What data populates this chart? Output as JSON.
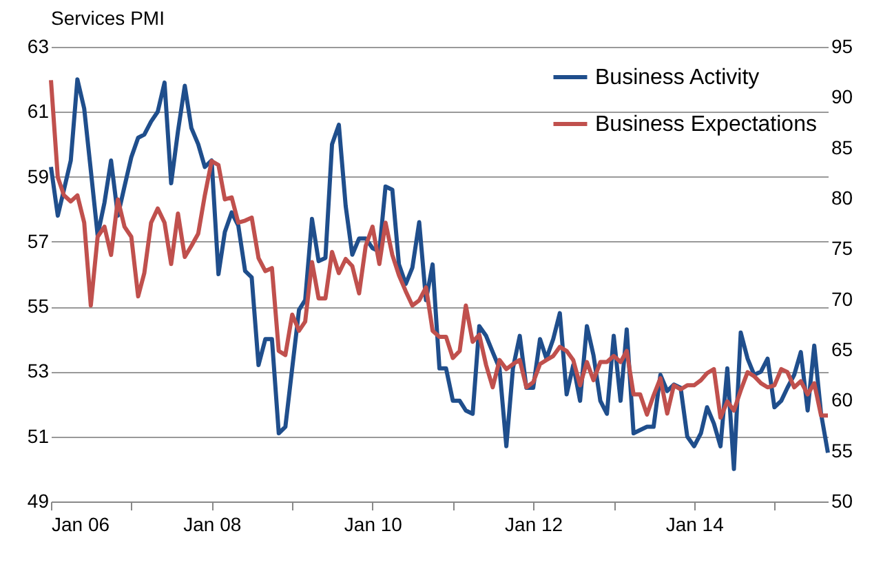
{
  "chart_data": {
    "type": "line",
    "title": "Services PMI",
    "x": [
      "2006-01",
      "2006-02",
      "2006-03",
      "2006-04",
      "2006-05",
      "2006-06",
      "2006-07",
      "2006-08",
      "2006-09",
      "2006-10",
      "2006-11",
      "2006-12",
      "2007-01",
      "2007-02",
      "2007-03",
      "2007-04",
      "2007-05",
      "2007-06",
      "2007-07",
      "2007-08",
      "2007-09",
      "2007-10",
      "2007-11",
      "2007-12",
      "2008-01",
      "2008-02",
      "2008-03",
      "2008-04",
      "2008-05",
      "2008-06",
      "2008-07",
      "2008-08",
      "2008-09",
      "2008-10",
      "2008-11",
      "2008-12",
      "2009-01",
      "2009-02",
      "2009-03",
      "2009-04",
      "2009-05",
      "2009-06",
      "2009-07",
      "2009-08",
      "2009-09",
      "2009-10",
      "2009-11",
      "2009-12",
      "2010-01",
      "2010-02",
      "2010-03",
      "2010-04",
      "2010-05",
      "2010-06",
      "2010-07",
      "2010-08",
      "2010-09",
      "2010-10",
      "2010-11",
      "2010-12",
      "2011-01",
      "2011-02",
      "2011-03",
      "2011-04",
      "2011-05",
      "2011-06",
      "2011-07",
      "2011-08",
      "2011-09",
      "2011-10",
      "2011-11",
      "2011-12",
      "2012-01",
      "2012-02",
      "2012-03",
      "2012-04",
      "2012-05",
      "2012-06",
      "2012-07",
      "2012-08",
      "2012-09",
      "2012-10",
      "2012-11",
      "2012-12",
      "2013-01",
      "2013-02",
      "2013-03",
      "2013-04",
      "2013-05",
      "2013-06",
      "2013-07",
      "2013-08",
      "2013-09",
      "2013-10",
      "2013-11",
      "2013-12",
      "2014-01",
      "2014-02",
      "2014-03",
      "2014-04",
      "2014-05",
      "2014-06",
      "2014-07",
      "2014-08",
      "2014-09",
      "2014-10",
      "2014-11",
      "2014-12",
      "2015-01",
      "2015-02",
      "2015-03",
      "2015-04",
      "2015-05",
      "2015-06",
      "2015-07",
      "2015-08",
      "2015-09"
    ],
    "series": [
      {
        "name": "Business Activity",
        "color": "#1f4e8c",
        "axis": "y",
        "values": [
          59.3,
          57.8,
          58.6,
          59.5,
          62.0,
          61.1,
          59.2,
          57.2,
          58.2,
          59.5,
          57.8,
          58.7,
          59.6,
          60.2,
          60.3,
          60.7,
          61.0,
          61.9,
          58.8,
          60.4,
          61.8,
          60.5,
          60.0,
          59.3,
          59.5,
          56.0,
          57.3,
          57.9,
          57.5,
          56.1,
          55.9,
          53.2,
          54.0,
          54.0,
          51.1,
          51.3,
          53.1,
          54.9,
          55.2,
          57.7,
          56.4,
          56.5,
          60.0,
          60.6,
          58.1,
          56.6,
          57.1,
          57.1,
          56.8,
          56.7,
          58.7,
          58.6,
          56.3,
          55.7,
          56.2,
          57.6,
          55.2,
          56.3,
          53.1,
          53.1,
          52.1,
          52.1,
          51.8,
          51.7,
          54.4,
          54.1,
          53.6,
          53.1,
          50.7,
          53.1,
          54.1,
          52.5,
          52.5,
          54.0,
          53.4,
          54.0,
          54.8,
          52.3,
          53.2,
          52.1,
          54.4,
          53.5,
          52.1,
          51.7,
          54.1,
          52.1,
          54.3,
          51.1,
          51.2,
          51.3,
          51.3,
          52.9,
          52.4,
          52.6,
          52.5,
          51.0,
          50.7,
          51.1,
          51.9,
          51.4,
          50.7,
          53.1,
          50.0,
          54.2,
          53.4,
          52.9,
          53.0,
          53.4,
          51.9,
          52.1,
          52.5,
          52.9,
          53.6,
          51.8,
          53.8,
          51.7,
          50.5
        ]
      },
      {
        "name": "Business Expectations",
        "color": "#c0504d",
        "axis": "y2",
        "values": [
          91.7,
          82.1,
          80.3,
          79.7,
          80.3,
          77.6,
          69.4,
          76.2,
          77.2,
          74.4,
          79.9,
          77.2,
          76.2,
          70.3,
          72.6,
          77.6,
          79.0,
          77.6,
          73.5,
          78.5,
          74.2,
          75.3,
          76.5,
          80.3,
          83.7,
          83.3,
          79.9,
          80.1,
          77.6,
          77.8,
          78.1,
          74.1,
          72.8,
          73.1,
          64.9,
          64.5,
          68.5,
          66.9,
          67.8,
          73.7,
          70.1,
          70.1,
          74.7,
          72.6,
          74.0,
          73.3,
          70.6,
          75.3,
          77.2,
          73.5,
          77.6,
          74.4,
          72.4,
          70.8,
          69.4,
          69.9,
          71.2,
          66.9,
          66.3,
          66.3,
          64.2,
          64.9,
          69.4,
          65.8,
          66.5,
          63.5,
          61.3,
          64.0,
          63.1,
          63.6,
          64.0,
          61.3,
          61.8,
          63.6,
          64.0,
          64.4,
          65.3,
          64.9,
          64.0,
          61.5,
          63.8,
          62.0,
          63.8,
          63.8,
          64.4,
          63.8,
          64.9,
          60.6,
          60.6,
          58.6,
          60.5,
          62.2,
          58.7,
          61.5,
          61.1,
          61.5,
          61.5,
          62.0,
          62.7,
          63.1,
          58.3,
          59.9,
          59.0,
          61.0,
          62.8,
          62.4,
          61.7,
          61.3,
          61.5,
          63.1,
          62.8,
          61.3,
          61.9,
          60.6,
          61.7,
          58.5,
          58.5
        ]
      }
    ],
    "xlim": [
      "2006-01",
      "2015-09"
    ],
    "xticks": [
      {
        "value": "2006-01",
        "label": "Jan 06"
      },
      {
        "value": "2007-01",
        "label": null
      },
      {
        "value": "2008-01",
        "label": "Jan 08"
      },
      {
        "value": "2009-01",
        "label": null
      },
      {
        "value": "2010-01",
        "label": "Jan 10"
      },
      {
        "value": "2011-01",
        "label": null
      },
      {
        "value": "2012-01",
        "label": "Jan 12"
      },
      {
        "value": "2013-01",
        "label": null
      },
      {
        "value": "2014-01",
        "label": "Jan 14"
      },
      {
        "value": "2015-01",
        "label": null
      }
    ],
    "ylim": [
      49,
      63
    ],
    "yticks": [
      49,
      51,
      53,
      55,
      57,
      59,
      61,
      63
    ],
    "y2lim": [
      50,
      95
    ],
    "y2ticks": [
      50,
      55,
      60,
      65,
      70,
      75,
      80,
      85,
      90,
      95
    ],
    "grid": "y",
    "legend": "top right",
    "marker": "none",
    "line_style": "solid"
  }
}
